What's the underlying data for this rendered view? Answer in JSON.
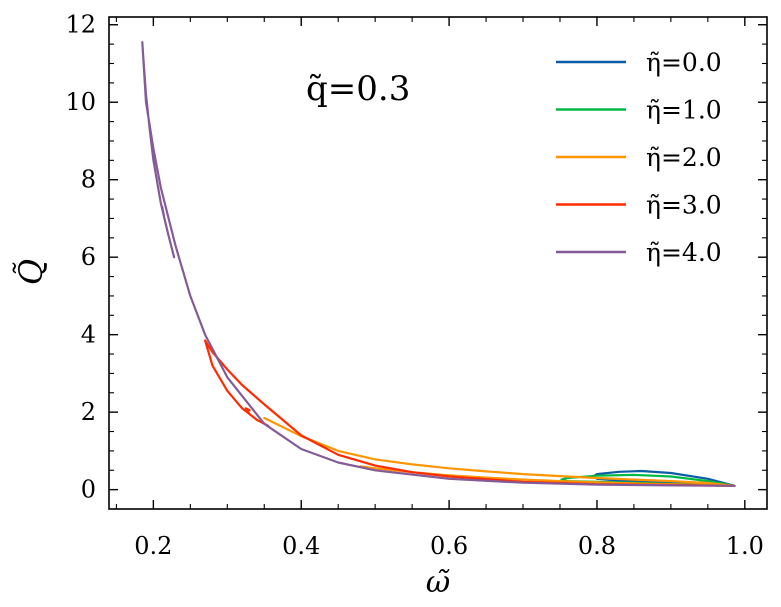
{
  "chart_data": {
    "type": "line",
    "title": "",
    "xlabel": "ω̃",
    "ylabel": "Q̃",
    "xlim": [
      0.14,
      1.03
    ],
    "ylim": [
      -0.5,
      12.2
    ],
    "xticks": [
      0.2,
      0.4,
      0.6,
      0.8,
      1.0
    ],
    "xtick_labels": [
      "0.2",
      "0.4",
      "0.6",
      "0.8",
      "1.0"
    ],
    "yticks": [
      0,
      2,
      4,
      6,
      8,
      10,
      12
    ],
    "ytick_labels": [
      "0",
      "2",
      "4",
      "6",
      "8",
      "10",
      "12"
    ],
    "annotation": "q̃=0.3",
    "legend_position": "top-right",
    "grid": false,
    "series": [
      {
        "name": "η̃=0.0",
        "color": "#0C5DA5",
        "x": [
          0.986,
          0.95,
          0.9,
          0.86,
          0.83,
          0.8,
          0.795,
          0.8,
          0.83,
          0.86,
          0.9,
          0.95,
          0.986
        ],
        "y": [
          0.1,
          0.28,
          0.43,
          0.48,
          0.46,
          0.4,
          0.34,
          0.28,
          0.23,
          0.2,
          0.17,
          0.13,
          0.1
        ]
      },
      {
        "name": "η̃=1.0",
        "color": "#00B945",
        "x": [
          0.986,
          0.95,
          0.9,
          0.85,
          0.8,
          0.76,
          0.752,
          0.76,
          0.8,
          0.85,
          0.9,
          0.95,
          0.986
        ],
        "y": [
          0.1,
          0.22,
          0.34,
          0.38,
          0.36,
          0.3,
          0.26,
          0.22,
          0.2,
          0.18,
          0.15,
          0.12,
          0.1
        ]
      },
      {
        "name": "η̃=2.0",
        "color": "#FF9500",
        "x": [
          0.35,
          0.4,
          0.45,
          0.5,
          0.55,
          0.6,
          0.65,
          0.7,
          0.75,
          0.8,
          0.85,
          0.9,
          0.95,
          0.986,
          0.95,
          0.9,
          0.85,
          0.8,
          0.75,
          0.7,
          0.65,
          0.6,
          0.55,
          0.5,
          0.48
        ],
        "y": [
          1.85,
          1.38,
          1.0,
          0.78,
          0.65,
          0.55,
          0.47,
          0.4,
          0.35,
          0.3,
          0.26,
          0.22,
          0.17,
          0.1,
          0.12,
          0.14,
          0.16,
          0.19,
          0.22,
          0.26,
          0.31,
          0.37,
          0.45,
          0.55,
          0.6
        ]
      },
      {
        "name": "η̃=3.0",
        "color": "#FF2C00",
        "x": [
          0.986,
          0.9,
          0.8,
          0.7,
          0.6,
          0.55,
          0.5,
          0.45,
          0.4,
          0.35,
          0.32,
          0.3,
          0.28,
          0.27,
          0.28,
          0.3,
          0.32,
          0.34,
          0.355,
          0.34,
          0.33,
          0.325,
          0.33
        ],
        "y": [
          0.1,
          0.12,
          0.14,
          0.2,
          0.34,
          0.45,
          0.62,
          0.9,
          1.4,
          2.2,
          2.7,
          3.1,
          3.55,
          3.85,
          3.2,
          2.55,
          2.1,
          1.8,
          1.65,
          1.8,
          1.95,
          2.1,
          2.05
        ]
      },
      {
        "name": "η̃=4.0",
        "color": "#845B97",
        "x": [
          0.986,
          0.9,
          0.8,
          0.7,
          0.6,
          0.5,
          0.45,
          0.4,
          0.35,
          0.3,
          0.27,
          0.25,
          0.23,
          0.21,
          0.2,
          0.19,
          0.185,
          0.187,
          0.19,
          0.195,
          0.2,
          0.21,
          0.22,
          0.228,
          0.22,
          0.215,
          0.212
        ],
        "y": [
          0.1,
          0.11,
          0.13,
          0.18,
          0.28,
          0.5,
          0.7,
          1.05,
          1.7,
          2.9,
          4.0,
          5.0,
          6.3,
          7.8,
          8.8,
          10.0,
          11.55,
          11.0,
          10.2,
          9.3,
          8.5,
          7.4,
          6.6,
          6.0,
          6.6,
          7.0,
          7.3
        ]
      }
    ]
  }
}
